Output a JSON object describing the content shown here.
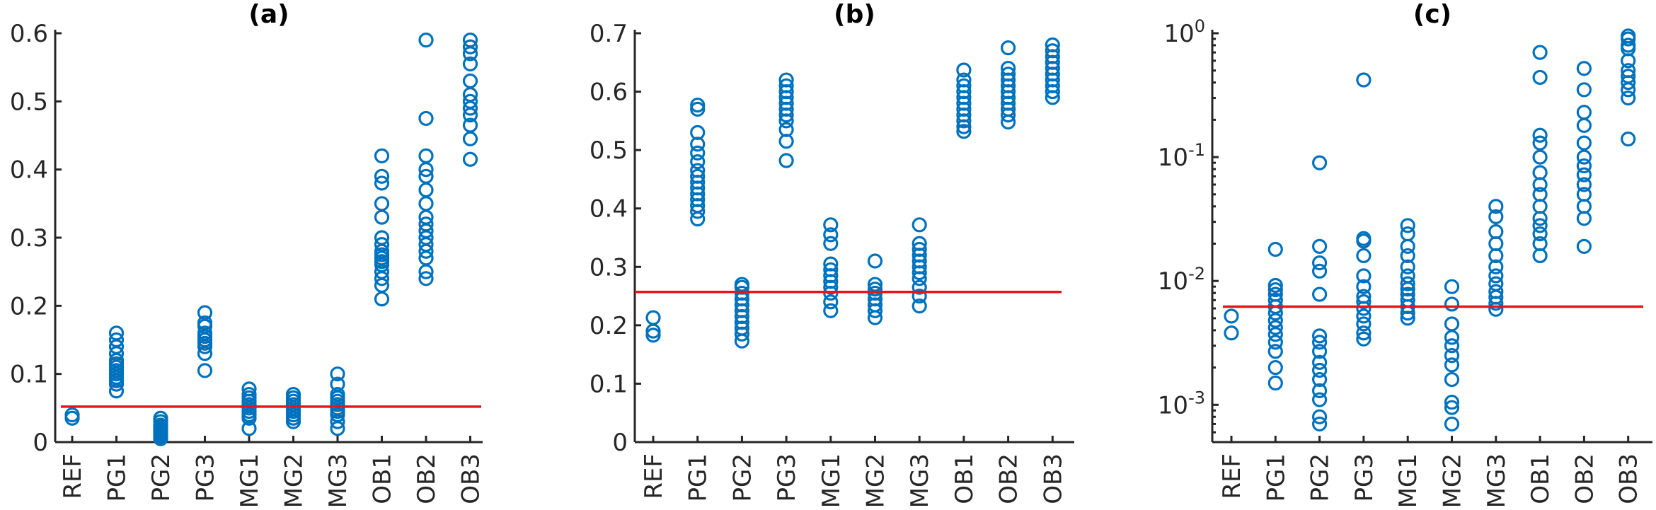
{
  "colors": {
    "marker": "#0072BD",
    "reference_line": "#E8141B",
    "axis": "#262626"
  },
  "chart_data": [
    {
      "type": "scatter",
      "title": "(a)",
      "categories": [
        "REF",
        "PG1",
        "PG2",
        "PG3",
        "MG1",
        "MG2",
        "MG3",
        "OB1",
        "OB2",
        "OB3"
      ],
      "y_scale": "linear",
      "ylim": [
        0,
        0.6
      ],
      "yticks": [
        0,
        0.1,
        0.2,
        0.3,
        0.4,
        0.5,
        0.6
      ],
      "ytick_labels": [
        "0",
        "0.1",
        "0.2",
        "0.3",
        "0.4",
        "0.5",
        "0.6"
      ],
      "reference_line": 0.052,
      "grid": false,
      "values": [
        [
          0.035,
          0.04
        ],
        [
          0.075,
          0.085,
          0.09,
          0.095,
          0.1,
          0.105,
          0.11,
          0.115,
          0.12,
          0.13,
          0.14,
          0.15,
          0.16
        ],
        [
          0.005,
          0.008,
          0.01,
          0.012,
          0.015,
          0.018,
          0.02,
          0.022,
          0.025,
          0.03,
          0.035
        ],
        [
          0.105,
          0.13,
          0.14,
          0.145,
          0.15,
          0.155,
          0.16,
          0.17,
          0.175,
          0.19
        ],
        [
          0.02,
          0.035,
          0.04,
          0.045,
          0.05,
          0.055,
          0.06,
          0.065,
          0.07,
          0.078
        ],
        [
          0.03,
          0.035,
          0.04,
          0.045,
          0.05,
          0.055,
          0.06,
          0.065,
          0.07
        ],
        [
          0.02,
          0.03,
          0.04,
          0.045,
          0.05,
          0.055,
          0.06,
          0.065,
          0.07,
          0.085,
          0.1
        ],
        [
          0.21,
          0.23,
          0.24,
          0.25,
          0.26,
          0.265,
          0.27,
          0.275,
          0.28,
          0.29,
          0.3,
          0.33,
          0.35,
          0.38,
          0.39,
          0.42
        ],
        [
          0.24,
          0.25,
          0.27,
          0.28,
          0.29,
          0.3,
          0.31,
          0.32,
          0.33,
          0.35,
          0.37,
          0.39,
          0.4,
          0.42,
          0.475,
          0.59
        ],
        [
          0.415,
          0.445,
          0.465,
          0.48,
          0.49,
          0.5,
          0.51,
          0.53,
          0.555,
          0.57,
          0.58,
          0.59
        ]
      ]
    },
    {
      "type": "scatter",
      "title": "(b)",
      "categories": [
        "REF",
        "PG1",
        "PG2",
        "PG3",
        "MG1",
        "MG2",
        "MG3",
        "OB1",
        "OB2",
        "OB3"
      ],
      "y_scale": "linear",
      "ylim": [
        0,
        0.7
      ],
      "yticks": [
        0,
        0.1,
        0.2,
        0.3,
        0.4,
        0.5,
        0.6,
        0.7
      ],
      "ytick_labels": [
        "0",
        "0.1",
        "0.2",
        "0.3",
        "0.4",
        "0.5",
        "0.6",
        "0.7"
      ],
      "reference_line": 0.257,
      "grid": false,
      "values": [
        [
          0.183,
          0.19,
          0.213
        ],
        [
          0.382,
          0.395,
          0.405,
          0.415,
          0.425,
          0.435,
          0.445,
          0.455,
          0.465,
          0.48,
          0.495,
          0.51,
          0.53,
          0.57,
          0.577
        ],
        [
          0.173,
          0.185,
          0.195,
          0.205,
          0.215,
          0.225,
          0.235,
          0.245,
          0.255,
          0.265,
          0.27
        ],
        [
          0.482,
          0.515,
          0.535,
          0.55,
          0.56,
          0.57,
          0.58,
          0.59,
          0.6,
          0.61,
          0.62
        ],
        [
          0.225,
          0.24,
          0.255,
          0.265,
          0.275,
          0.285,
          0.295,
          0.305,
          0.34,
          0.355,
          0.372
        ],
        [
          0.213,
          0.225,
          0.235,
          0.245,
          0.255,
          0.262,
          0.27,
          0.31
        ],
        [
          0.233,
          0.25,
          0.265,
          0.28,
          0.29,
          0.3,
          0.31,
          0.32,
          0.33,
          0.34,
          0.372
        ],
        [
          0.532,
          0.54,
          0.55,
          0.56,
          0.57,
          0.58,
          0.59,
          0.6,
          0.61,
          0.62,
          0.637
        ],
        [
          0.548,
          0.56,
          0.57,
          0.58,
          0.59,
          0.6,
          0.61,
          0.62,
          0.63,
          0.64,
          0.675
        ],
        [
          0.59,
          0.6,
          0.61,
          0.62,
          0.63,
          0.64,
          0.65,
          0.66,
          0.67,
          0.68
        ]
      ]
    },
    {
      "type": "scatter",
      "title": "(c)",
      "categories": [
        "REF",
        "PG1",
        "PG2",
        "PG3",
        "MG1",
        "MG2",
        "MG3",
        "OB1",
        "OB2",
        "OB3"
      ],
      "y_scale": "log",
      "ylim": [
        0.0005,
        1
      ],
      "yticks": [
        0.001,
        0.01,
        0.1,
        1
      ],
      "ytick_labels": [
        {
          "base": "10",
          "exp": "-3"
        },
        {
          "base": "10",
          "exp": "-2"
        },
        {
          "base": "10",
          "exp": "-1"
        },
        {
          "base": "10",
          "exp": "0"
        }
      ],
      "reference_line": 0.0062,
      "grid": false,
      "values": [
        [
          0.0038,
          0.0052
        ],
        [
          0.0015,
          0.002,
          0.0027,
          0.0032,
          0.0037,
          0.0042,
          0.0048,
          0.0055,
          0.0062,
          0.007,
          0.0078,
          0.0085,
          0.0092,
          0.018
        ],
        [
          0.0007,
          0.0008,
          0.0011,
          0.0013,
          0.0016,
          0.0019,
          0.0022,
          0.0027,
          0.0032,
          0.0036,
          0.0078,
          0.012,
          0.014,
          0.019,
          0.09
        ],
        [
          0.0034,
          0.0038,
          0.0045,
          0.0052,
          0.006,
          0.0068,
          0.0075,
          0.009,
          0.011,
          0.016,
          0.021,
          0.022,
          0.42
        ],
        [
          0.005,
          0.0055,
          0.0062,
          0.007,
          0.0078,
          0.0086,
          0.0095,
          0.011,
          0.013,
          0.016,
          0.019,
          0.024,
          0.028
        ],
        [
          0.0007,
          0.00095,
          0.00105,
          0.0016,
          0.0021,
          0.0025,
          0.003,
          0.0035,
          0.0045,
          0.0065,
          0.009
        ],
        [
          0.0059,
          0.0066,
          0.0074,
          0.0082,
          0.0095,
          0.011,
          0.013,
          0.016,
          0.02,
          0.025,
          0.033,
          0.04
        ],
        [
          0.016,
          0.02,
          0.024,
          0.028,
          0.032,
          0.04,
          0.05,
          0.06,
          0.075,
          0.1,
          0.13,
          0.15,
          0.44,
          0.7
        ],
        [
          0.019,
          0.032,
          0.04,
          0.05,
          0.06,
          0.072,
          0.085,
          0.1,
          0.13,
          0.18,
          0.23,
          0.35,
          0.52
        ],
        [
          0.14,
          0.3,
          0.35,
          0.4,
          0.45,
          0.5,
          0.6,
          0.75,
          0.8,
          0.9,
          0.95
        ]
      ]
    }
  ]
}
